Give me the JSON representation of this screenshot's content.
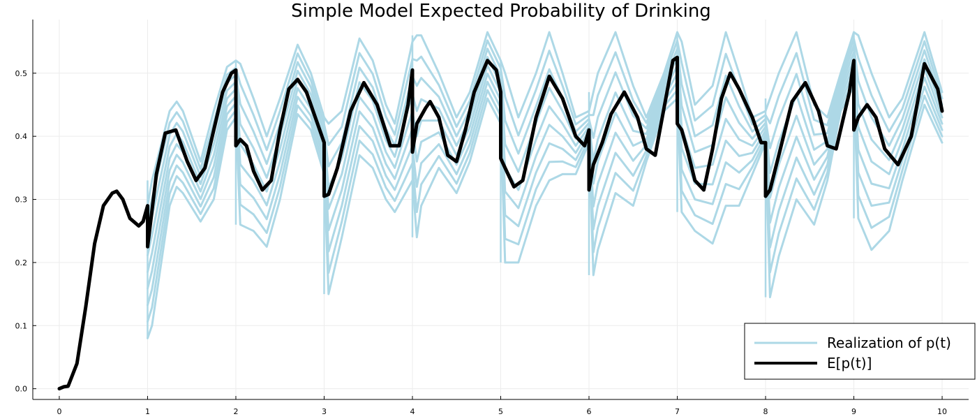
{
  "chart_data": {
    "type": "line",
    "title": "Simple Model Expected Probability of Drinking",
    "xlabel": "",
    "ylabel": "",
    "xlim": [
      -0.3,
      10.3
    ],
    "ylim": [
      -0.017,
      0.585
    ],
    "x_ticks": [
      0,
      1,
      2,
      3,
      4,
      5,
      6,
      7,
      8,
      9,
      10
    ],
    "x_tick_labels": [
      "0",
      "1",
      "2",
      "3",
      "4",
      "5",
      "6",
      "7",
      "8",
      "9",
      "10"
    ],
    "y_ticks": [
      0.0,
      0.1,
      0.2,
      0.3,
      0.4,
      0.5
    ],
    "y_tick_labels": [
      "0.0",
      "0.1",
      "0.2",
      "0.3",
      "0.4",
      "0.5"
    ],
    "grid": true,
    "legend_position": "bottom-right",
    "colors": {
      "realization": "#add8e6",
      "expected": "#000000"
    },
    "legend": [
      {
        "label": "Realization of p(t)",
        "color": "#add8e6"
      },
      {
        "label": "E[p(t)]",
        "color": "#000000"
      }
    ],
    "series": [
      {
        "name": "Realization of p(t)",
        "style": "band",
        "x": [
          1.0,
          1.05,
          1.25,
          1.33,
          1.4,
          1.6,
          1.75,
          1.9,
          2.0,
          2.05,
          2.2,
          2.35,
          2.5,
          2.7,
          2.85,
          3.0,
          3.05,
          3.2,
          3.4,
          3.55,
          3.7,
          3.8,
          4.0,
          4.05,
          4.1,
          4.3,
          4.5,
          4.65,
          4.85,
          5.0,
          5.05,
          5.2,
          5.4,
          5.55,
          5.7,
          5.85,
          6.0,
          6.05,
          6.1,
          6.3,
          6.5,
          6.65,
          6.85,
          7.0,
          7.05,
          7.2,
          7.4,
          7.55,
          7.7,
          7.85,
          8.0,
          8.05,
          8.15,
          8.35,
          8.55,
          8.7,
          8.85,
          9.0,
          9.05,
          9.2,
          9.4,
          9.55,
          9.8,
          10.0
        ],
        "upper": [
          0.29,
          0.33,
          0.44,
          0.455,
          0.44,
          0.36,
          0.44,
          0.51,
          0.52,
          0.515,
          0.46,
          0.4,
          0.46,
          0.545,
          0.5,
          0.43,
          0.42,
          0.44,
          0.555,
          0.52,
          0.45,
          0.42,
          0.55,
          0.56,
          0.56,
          0.5,
          0.43,
          0.47,
          0.565,
          0.52,
          0.5,
          0.43,
          0.5,
          0.565,
          0.5,
          0.43,
          0.44,
          0.47,
          0.5,
          0.565,
          0.48,
          0.43,
          0.5,
          0.565,
          0.55,
          0.45,
          0.48,
          0.565,
          0.5,
          0.43,
          0.44,
          0.46,
          0.5,
          0.565,
          0.45,
          0.43,
          0.5,
          0.565,
          0.56,
          0.5,
          0.43,
          0.46,
          0.565,
          0.47
        ],
        "lower": [
          0.08,
          0.1,
          0.29,
          0.32,
          0.31,
          0.265,
          0.3,
          0.41,
          0.43,
          0.26,
          0.25,
          0.225,
          0.3,
          0.435,
          0.41,
          0.34,
          0.15,
          0.24,
          0.37,
          0.35,
          0.3,
          0.28,
          0.33,
          0.24,
          0.29,
          0.35,
          0.31,
          0.36,
          0.46,
          0.42,
          0.2,
          0.2,
          0.29,
          0.33,
          0.34,
          0.34,
          0.39,
          0.18,
          0.22,
          0.31,
          0.29,
          0.36,
          0.44,
          0.46,
          0.28,
          0.25,
          0.23,
          0.29,
          0.29,
          0.34,
          0.39,
          0.145,
          0.21,
          0.3,
          0.26,
          0.33,
          0.44,
          0.48,
          0.27,
          0.22,
          0.25,
          0.33,
          0.45,
          0.39
        ],
        "x_jumps": [
          1,
          2,
          3,
          4,
          5,
          6,
          7,
          8,
          9
        ]
      },
      {
        "name": "E[p(t)]",
        "style": "line",
        "x": [
          0.0,
          0.05,
          0.1,
          0.2,
          0.3,
          0.4,
          0.5,
          0.6,
          0.65,
          0.72,
          0.8,
          0.9,
          0.95,
          1.0,
          1.0,
          1.1,
          1.2,
          1.32,
          1.45,
          1.55,
          1.65,
          1.75,
          1.85,
          1.95,
          2.0,
          2.0,
          2.05,
          2.12,
          2.2,
          2.3,
          2.4,
          2.5,
          2.6,
          2.7,
          2.8,
          2.9,
          3.0,
          3.0,
          3.05,
          3.15,
          3.3,
          3.45,
          3.6,
          3.75,
          3.85,
          3.95,
          4.0,
          4.0,
          4.05,
          4.15,
          4.2,
          4.3,
          4.4,
          4.5,
          4.6,
          4.7,
          4.85,
          4.95,
          5.0,
          5.0,
          5.05,
          5.15,
          5.25,
          5.4,
          5.55,
          5.7,
          5.85,
          5.95,
          6.0,
          6.0,
          6.05,
          6.15,
          6.25,
          6.4,
          6.55,
          6.65,
          6.75,
          6.95,
          7.0,
          7.0,
          7.05,
          7.12,
          7.2,
          7.3,
          7.4,
          7.5,
          7.6,
          7.7,
          7.85,
          7.95,
          8.0,
          8.0,
          8.05,
          8.15,
          8.3,
          8.45,
          8.6,
          8.7,
          8.8,
          8.95,
          9.0,
          9.0,
          9.05,
          9.15,
          9.25,
          9.35,
          9.5,
          9.65,
          9.8,
          9.95,
          10.0
        ],
        "y": [
          0.0,
          0.003,
          0.004,
          0.04,
          0.13,
          0.23,
          0.29,
          0.31,
          0.313,
          0.3,
          0.27,
          0.258,
          0.265,
          0.29,
          0.225,
          0.34,
          0.405,
          0.41,
          0.36,
          0.33,
          0.35,
          0.41,
          0.47,
          0.5,
          0.505,
          0.385,
          0.395,
          0.385,
          0.345,
          0.315,
          0.33,
          0.41,
          0.475,
          0.49,
          0.47,
          0.43,
          0.39,
          0.305,
          0.308,
          0.35,
          0.44,
          0.485,
          0.45,
          0.385,
          0.385,
          0.45,
          0.505,
          0.375,
          0.42,
          0.445,
          0.455,
          0.43,
          0.37,
          0.36,
          0.41,
          0.47,
          0.52,
          0.505,
          0.47,
          0.365,
          0.35,
          0.32,
          0.33,
          0.43,
          0.495,
          0.46,
          0.4,
          0.385,
          0.41,
          0.315,
          0.355,
          0.39,
          0.435,
          0.47,
          0.43,
          0.38,
          0.37,
          0.52,
          0.525,
          0.42,
          0.41,
          0.375,
          0.33,
          0.315,
          0.38,
          0.46,
          0.5,
          0.475,
          0.43,
          0.39,
          0.39,
          0.305,
          0.315,
          0.37,
          0.455,
          0.485,
          0.44,
          0.385,
          0.38,
          0.47,
          0.52,
          0.41,
          0.43,
          0.45,
          0.43,
          0.38,
          0.355,
          0.4,
          0.515,
          0.475,
          0.44
        ]
      }
    ]
  }
}
